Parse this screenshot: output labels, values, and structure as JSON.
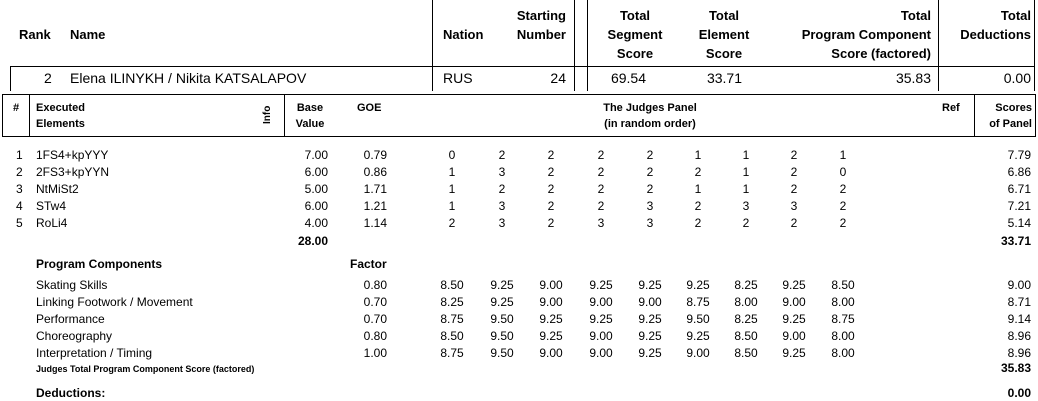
{
  "header": {
    "rank": "Rank",
    "name": "Name",
    "nation": "Nation",
    "starting": [
      "Starting",
      "Number"
    ],
    "tss": [
      "Total",
      "Segment",
      "Score"
    ],
    "tes": [
      "Total",
      "Element",
      "Score"
    ],
    "pcs": [
      "Total",
      "Program  Component",
      "Score (factored)"
    ],
    "ded": [
      "Total",
      "Deductions"
    ]
  },
  "skater": {
    "rank": "2",
    "name": "Elena ILINYKH / Nikita KATSALAPOV",
    "nation": "RUS",
    "starting_number": "24",
    "tss": "69.54",
    "tes": "33.71",
    "pcs": "35.83",
    "deductions": "0.00"
  },
  "elements_header": {
    "num": "#",
    "executed": [
      "Executed",
      "Elements"
    ],
    "info": "Info",
    "base": [
      "Base",
      "Value"
    ],
    "goe": "GOE",
    "judges": [
      "The Judges Panel",
      "(in random order)"
    ],
    "ref": "Ref",
    "scores": [
      "Scores",
      "of Panel"
    ]
  },
  "elements": [
    {
      "n": "1",
      "name": "1FS4+kpYYY",
      "base": "7.00",
      "goe": "0.79",
      "judges": [
        "0",
        "2",
        "2",
        "2",
        "2",
        "1",
        "1",
        "2",
        "1"
      ],
      "score": "7.79"
    },
    {
      "n": "2",
      "name": "2FS3+kpYYN",
      "base": "6.00",
      "goe": "0.86",
      "judges": [
        "1",
        "3",
        "2",
        "2",
        "2",
        "2",
        "1",
        "2",
        "0"
      ],
      "score": "6.86"
    },
    {
      "n": "3",
      "name": "NtMiSt2",
      "base": "5.00",
      "goe": "1.71",
      "judges": [
        "1",
        "2",
        "2",
        "2",
        "2",
        "1",
        "1",
        "2",
        "2"
      ],
      "score": "6.71"
    },
    {
      "n": "4",
      "name": "STw4",
      "base": "6.00",
      "goe": "1.21",
      "judges": [
        "1",
        "3",
        "2",
        "2",
        "3",
        "2",
        "3",
        "3",
        "2"
      ],
      "score": "7.21"
    },
    {
      "n": "5",
      "name": "RoLi4",
      "base": "4.00",
      "goe": "1.14",
      "judges": [
        "2",
        "3",
        "2",
        "3",
        "3",
        "2",
        "2",
        "2",
        "2"
      ],
      "score": "5.14"
    }
  ],
  "elements_totals": {
    "base": "28.00",
    "score": "33.71"
  },
  "components_header": {
    "title": "Program Components",
    "factor": "Factor"
  },
  "components": [
    {
      "name": "Skating Skills",
      "factor": "0.80",
      "judges": [
        "8.50",
        "9.25",
        "9.00",
        "9.25",
        "9.25",
        "9.25",
        "8.25",
        "9.25",
        "8.50"
      ],
      "score": "9.00"
    },
    {
      "name": "Linking Footwork / Movement",
      "factor": "0.70",
      "judges": [
        "8.25",
        "9.25",
        "9.00",
        "9.00",
        "9.00",
        "8.75",
        "8.00",
        "9.00",
        "8.00"
      ],
      "score": "8.71"
    },
    {
      "name": "Performance",
      "factor": "0.70",
      "judges": [
        "8.75",
        "9.50",
        "9.25",
        "9.25",
        "9.25",
        "9.50",
        "8.25",
        "9.25",
        "8.75"
      ],
      "score": "9.14"
    },
    {
      "name": "Choreography",
      "factor": "0.80",
      "judges": [
        "8.50",
        "9.50",
        "9.25",
        "9.00",
        "9.25",
        "9.25",
        "8.50",
        "9.00",
        "8.00"
      ],
      "score": "8.96"
    },
    {
      "name": "Interpretation / Timing",
      "factor": "1.00",
      "judges": [
        "8.75",
        "9.50",
        "9.00",
        "9.00",
        "9.25",
        "9.00",
        "8.50",
        "9.25",
        "8.00"
      ],
      "score": "8.96"
    }
  ],
  "pcs_total": {
    "label": "Judges Total Program Component Score (factored)",
    "value": "35.83"
  },
  "deductions": {
    "label": "Deductions:",
    "value": "0.00"
  }
}
